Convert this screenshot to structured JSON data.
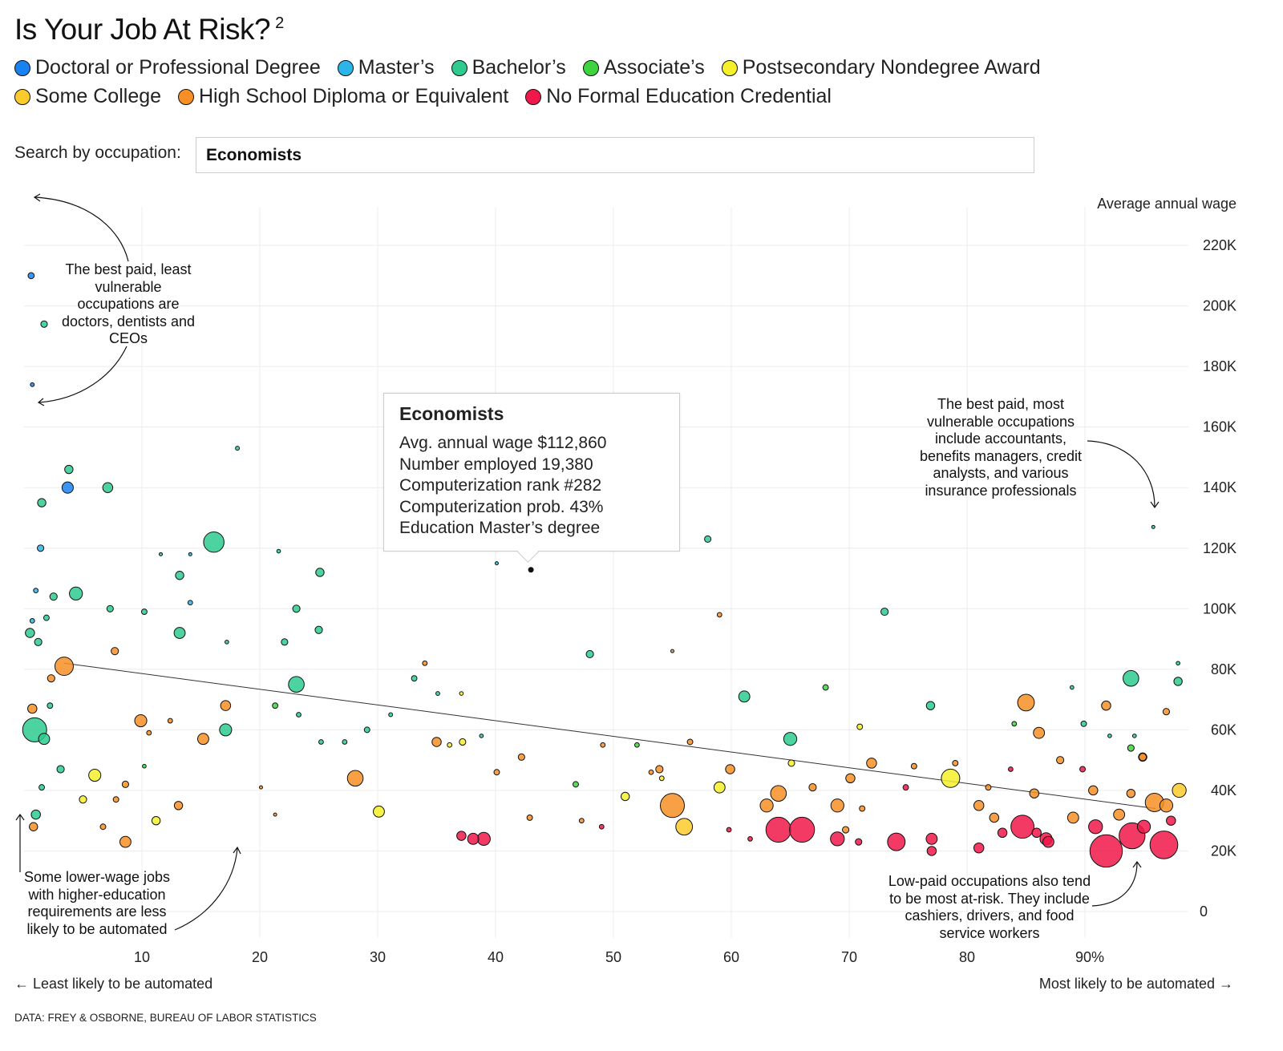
{
  "header": {
    "title": "Is Your Job At Risk?",
    "footnote": "2"
  },
  "legend": [
    {
      "label": "Doctoral or Professional Degree",
      "color": "#1a82f0"
    },
    {
      "label": "Master’s",
      "color": "#2bb5e8"
    },
    {
      "label": "Bachelor’s",
      "color": "#2ecb8f"
    },
    {
      "label": "Associate’s",
      "color": "#3fd43f"
    },
    {
      "label": "Postsecondary Nondegree Award",
      "color": "#f5f02a"
    },
    {
      "label": "Some College",
      "color": "#fbcb2c"
    },
    {
      "label": "High School Diploma or Equivalent",
      "color": "#f78f26"
    },
    {
      "label": "No Formal Education Credential",
      "color": "#f0184a"
    }
  ],
  "search": {
    "label": "Search by occupation:",
    "value": "Economists"
  },
  "tooltip": {
    "title": "Economists",
    "lines": [
      "Avg. annual wage $112,860",
      "Number employed 19,380",
      "Computerization rank #282",
      "Computerization prob. 43%",
      "Education Master’s degree"
    ]
  },
  "annotations": {
    "top_left": "The best paid, least vulnerable occupations are doctors, dentists and CEOs",
    "top_right": "The best paid, most vulnerable occupations include accountants, benefits managers, credit analysts, and various insurance professionals",
    "bottom_left": "Some lower-wage jobs with higher-education requirements are less likely to be automated",
    "bottom_right": "Low-paid occupations also tend to be most at-risk. They include cashiers, drivers, and food service workers"
  },
  "axis_notes": {
    "left": "← Least likely to be automated",
    "right": "Most likely to be automated →"
  },
  "source": "DATA: FREY & OSBORNE, BUREAU OF LABOR STATISTICS",
  "chart_data": {
    "type": "scatter",
    "ylabel": "Average annual wage",
    "xlim": [
      0,
      100
    ],
    "ylim": [
      0,
      230
    ],
    "x_ticks": [
      "10",
      "20",
      "30",
      "40",
      "50",
      "60",
      "70",
      "80",
      "90%"
    ],
    "x_tick_values": [
      10,
      20,
      30,
      40,
      50,
      60,
      70,
      80,
      90
    ],
    "y_ticks": [
      "0",
      "20K",
      "40K",
      "60K",
      "80K",
      "100K",
      "120K",
      "140K",
      "160K",
      "180K",
      "200K",
      "220K"
    ],
    "y_tick_values": [
      0,
      20,
      40,
      60,
      80,
      100,
      120,
      140,
      160,
      180,
      200,
      220
    ],
    "grid": true,
    "x_unit": "computerization probability (%)",
    "y_unit": "thousand dollars",
    "size_unit": "number employed (thousands)",
    "point_fields": [
      "prob",
      "wage_k",
      "employed_k",
      "education_index"
    ],
    "highlight": {
      "name": "Economists",
      "prob": 43,
      "wage_k": 112.86,
      "employed_k": 19.38,
      "education_index": 1
    },
    "trendline": [
      [
        3.4,
        82
      ],
      [
        96,
        34
      ]
    ],
    "points": [
      [
        0.6,
        210,
        50,
        0
      ],
      [
        1.7,
        194,
        55,
        2
      ],
      [
        0.7,
        174,
        20,
        0
      ],
      [
        3.7,
        140,
        165,
        0
      ],
      [
        3.8,
        146,
        90,
        2
      ],
      [
        1.5,
        135,
        90,
        2
      ],
      [
        7.1,
        140,
        130,
        2
      ],
      [
        16.1,
        122,
        540,
        2
      ],
      [
        18.1,
        153,
        20,
        2
      ],
      [
        1.4,
        120,
        55,
        1
      ],
      [
        13.2,
        111,
        90,
        2
      ],
      [
        4.4,
        105,
        220,
        2
      ],
      [
        25.1,
        112,
        90,
        2
      ],
      [
        10.2,
        99,
        40,
        2
      ],
      [
        7.3,
        100,
        55,
        2
      ],
      [
        13.2,
        92,
        160,
        2
      ],
      [
        23.1,
        100,
        70,
        2
      ],
      [
        25.0,
        93,
        70,
        2
      ],
      [
        22.1,
        89,
        55,
        2
      ],
      [
        3.4,
        81,
        440,
        6
      ],
      [
        0.9,
        60,
        750,
        2
      ],
      [
        0.5,
        92,
        110,
        2
      ],
      [
        23.1,
        75,
        320,
        2
      ],
      [
        17.1,
        60,
        190,
        2
      ],
      [
        17.1,
        68,
        130,
        6
      ],
      [
        9.9,
        63,
        190,
        6
      ],
      [
        15.2,
        57,
        160,
        6
      ],
      [
        28.1,
        44,
        320,
        6
      ],
      [
        30.1,
        33,
        160,
        4
      ],
      [
        6.0,
        45,
        190,
        4
      ],
      [
        8.6,
        23,
        160,
        6
      ],
      [
        11.2,
        30,
        90,
        4
      ],
      [
        7.7,
        86,
        70,
        6
      ],
      [
        1.0,
        32,
        110,
        2
      ],
      [
        0.8,
        28,
        90,
        6
      ],
      [
        58.0,
        123,
        55,
        2
      ],
      [
        73.0,
        99,
        70,
        2
      ],
      [
        48.0,
        85,
        70,
        2
      ],
      [
        61.1,
        71,
        160,
        2
      ],
      [
        65.0,
        57,
        220,
        2
      ],
      [
        68.0,
        74,
        40,
        3
      ],
      [
        93.9,
        77,
        320,
        2
      ],
      [
        97.9,
        76,
        90,
        2
      ],
      [
        95.8,
        127,
        8,
        2
      ],
      [
        55.0,
        35,
        750,
        6
      ],
      [
        56.0,
        28,
        360,
        5
      ],
      [
        59.0,
        41,
        160,
        4
      ],
      [
        64.0,
        39,
        320,
        6
      ],
      [
        63.0,
        35,
        220,
        6
      ],
      [
        64.0,
        27,
        810,
        7
      ],
      [
        66.0,
        27,
        810,
        7
      ],
      [
        69.0,
        35,
        220,
        6
      ],
      [
        69.0,
        24,
        250,
        7
      ],
      [
        74.0,
        23,
        400,
        7
      ],
      [
        77.0,
        24,
        160,
        7
      ],
      [
        78.6,
        44,
        440,
        4
      ],
      [
        85.0,
        69,
        360,
        6
      ],
      [
        84.7,
        28,
        690,
        7
      ],
      [
        81.0,
        35,
        130,
        6
      ],
      [
        86.7,
        24,
        190,
        7
      ],
      [
        91.8,
        20,
        1360,
        7
      ],
      [
        94.0,
        25,
        870,
        7
      ],
      [
        96.7,
        22,
        1000,
        7
      ],
      [
        95.9,
        36,
        440,
        6
      ],
      [
        98.0,
        40,
        250,
        5
      ],
      [
        91.8,
        68,
        110,
        6
      ],
      [
        87.9,
        50,
        70,
        6
      ],
      [
        85.7,
        39,
        110,
        6
      ],
      [
        89.0,
        31,
        160,
        6
      ],
      [
        90.9,
        28,
        250,
        7
      ],
      [
        94.9,
        51,
        70,
        6
      ],
      [
        38.1,
        24,
        160,
        7
      ],
      [
        39.0,
        24,
        220,
        7
      ],
      [
        37.1,
        25,
        110,
        7
      ],
      [
        35.0,
        56,
        110,
        6
      ],
      [
        59.9,
        47,
        110,
        6
      ],
      [
        70.1,
        44,
        110,
        6
      ],
      [
        71.9,
        49,
        130,
        6
      ],
      [
        77.0,
        20,
        110,
        7
      ],
      [
        81.0,
        21,
        130,
        7
      ],
      [
        83.0,
        26,
        110,
        7
      ],
      [
        2.3,
        77,
        70,
        6
      ],
      [
        0.7,
        67,
        110,
        6
      ],
      [
        1.7,
        57,
        160,
        2
      ],
      [
        2.5,
        104,
        70,
        2
      ],
      [
        1.9,
        97,
        40,
        2
      ],
      [
        0.7,
        96,
        28,
        1
      ],
      [
        1.0,
        106,
        28,
        1
      ],
      [
        1.2,
        89,
        70,
        2
      ],
      [
        2.2,
        68,
        40,
        2
      ],
      [
        3.1,
        47,
        70,
        2
      ],
      [
        1.5,
        41,
        40,
        2
      ],
      [
        10.2,
        48,
        18,
        3
      ],
      [
        51.0,
        38,
        90,
        4
      ],
      [
        74.8,
        41,
        40,
        7
      ],
      [
        89.8,
        47,
        40,
        7
      ],
      [
        90.7,
        40,
        110,
        6
      ],
      [
        40.1,
        46,
        40,
        6
      ],
      [
        42.9,
        31,
        40,
        6
      ],
      [
        46.8,
        42,
        40,
        3
      ],
      [
        49.0,
        28,
        28,
        7
      ],
      [
        42.2,
        51,
        55,
        6
      ],
      [
        53.9,
        47,
        70,
        6
      ],
      [
        37.2,
        56,
        55,
        4
      ],
      [
        56.5,
        56,
        40,
        6
      ],
      [
        43.0,
        112.86,
        19,
        1
      ],
      [
        40.1,
        115,
        8,
        1
      ],
      [
        82.3,
        31,
        110,
        6
      ],
      [
        85.9,
        26,
        110,
        7
      ],
      [
        86.9,
        23,
        160,
        7
      ],
      [
        97.3,
        30,
        110,
        7
      ],
      [
        95.0,
        28,
        220,
        7
      ],
      [
        92.9,
        32,
        160,
        6
      ],
      [
        96.9,
        35,
        220,
        6
      ],
      [
        93.9,
        39,
        90,
        6
      ],
      [
        81.8,
        41,
        40,
        6
      ],
      [
        83.7,
        47,
        28,
        7
      ],
      [
        86.1,
        59,
        160,
        6
      ],
      [
        84.0,
        62,
        28,
        3
      ],
      [
        89.9,
        62,
        40,
        2
      ],
      [
        92.1,
        58,
        18,
        2
      ],
      [
        93.9,
        54,
        55,
        3
      ],
      [
        94.9,
        51,
        90,
        6
      ],
      [
        53.2,
        46,
        28,
        6
      ],
      [
        54.1,
        44,
        28,
        4
      ],
      [
        47.3,
        30,
        28,
        6
      ],
      [
        49.1,
        55,
        28,
        6
      ],
      [
        52.0,
        55,
        28,
        3
      ],
      [
        66.9,
        41,
        70,
        6
      ],
      [
        69.7,
        27,
        55,
        6
      ],
      [
        70.8,
        23,
        55,
        7
      ],
      [
        71.1,
        34,
        40,
        6
      ],
      [
        79.0,
        49,
        40,
        6
      ],
      [
        75.5,
        48,
        40,
        6
      ],
      [
        65.1,
        49,
        55,
        4
      ],
      [
        70.9,
        61,
        40,
        4
      ],
      [
        76.9,
        68,
        90,
        2
      ],
      [
        88.9,
        74,
        18,
        2
      ],
      [
        94.2,
        58,
        18,
        2
      ],
      [
        97.9,
        82,
        18,
        2
      ],
      [
        96.9,
        66,
        55,
        6
      ],
      [
        59.0,
        98,
        28,
        6
      ],
      [
        55.0,
        86,
        12,
        6
      ],
      [
        61.6,
        24,
        28,
        7
      ],
      [
        59.8,
        27,
        28,
        7
      ],
      [
        21.6,
        119,
        18,
        2
      ],
      [
        11.6,
        118,
        8,
        2
      ],
      [
        14.1,
        102,
        28,
        1
      ],
      [
        14.1,
        118,
        12,
        1
      ],
      [
        17.2,
        89,
        18,
        2
      ],
      [
        21.3,
        68,
        40,
        3
      ],
      [
        23.3,
        65,
        28,
        2
      ],
      [
        25.2,
        56,
        28,
        2
      ],
      [
        27.2,
        56,
        28,
        2
      ],
      [
        29.1,
        60,
        40,
        2
      ],
      [
        31.1,
        65,
        20,
        2
      ],
      [
        33.1,
        77,
        40,
        2
      ],
      [
        34.0,
        82,
        28,
        6
      ],
      [
        35.1,
        72,
        20,
        2
      ],
      [
        36.1,
        55,
        28,
        4
      ],
      [
        38.8,
        58,
        18,
        2
      ],
      [
        37.1,
        72,
        18,
        4
      ],
      [
        20.1,
        41,
        12,
        6
      ],
      [
        21.3,
        32,
        8,
        6
      ],
      [
        13.1,
        35,
        90,
        6
      ],
      [
        6.7,
        28,
        40,
        6
      ],
      [
        5.0,
        37,
        70,
        4
      ],
      [
        8.6,
        42,
        55,
        6
      ],
      [
        7.8,
        37,
        40,
        6
      ],
      [
        10.6,
        59,
        28,
        6
      ],
      [
        12.4,
        63,
        28,
        6
      ]
    ]
  }
}
